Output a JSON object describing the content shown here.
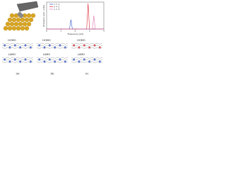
{
  "chart_data": {
    "type": "line",
    "x_label": "Frequency (eV)",
    "y_label": "Emission (arb. units)",
    "x": [
      0,
      1.6,
      1.7,
      1.8,
      2.8,
      2.9,
      3.0,
      3.2,
      3.3,
      3.4,
      4
    ],
    "series": [
      {
        "name": "n = 1",
        "color": "#2d55c8",
        "values": [
          0,
          0,
          0.35,
          0,
          0,
          0,
          0,
          0,
          0,
          0,
          0
        ]
      },
      {
        "name": "n = 2",
        "color": "#d8262e",
        "values": [
          0,
          0,
          0,
          0,
          0,
          0.95,
          0,
          0,
          0,
          0,
          0
        ]
      },
      {
        "name": "n = 3",
        "color": "#e070b0",
        "values": [
          0,
          0,
          0,
          0,
          0,
          0,
          0,
          0,
          0.5,
          0,
          0
        ]
      }
    ],
    "xlim": [
      0,
      4
    ],
    "xticks": [
      0,
      1,
      2,
      3,
      4
    ],
    "ylim": [
      0,
      1
    ]
  },
  "orbitals": {
    "panels": [
      {
        "homo": "HOMO",
        "lumo": "LUMO",
        "label": "(a)"
      },
      {
        "homo": "HOMO",
        "lumo": "LUMO",
        "label": "(b)"
      },
      {
        "homo": "HOMO",
        "lumo": "LUMO",
        "label": "(c)"
      }
    ]
  }
}
